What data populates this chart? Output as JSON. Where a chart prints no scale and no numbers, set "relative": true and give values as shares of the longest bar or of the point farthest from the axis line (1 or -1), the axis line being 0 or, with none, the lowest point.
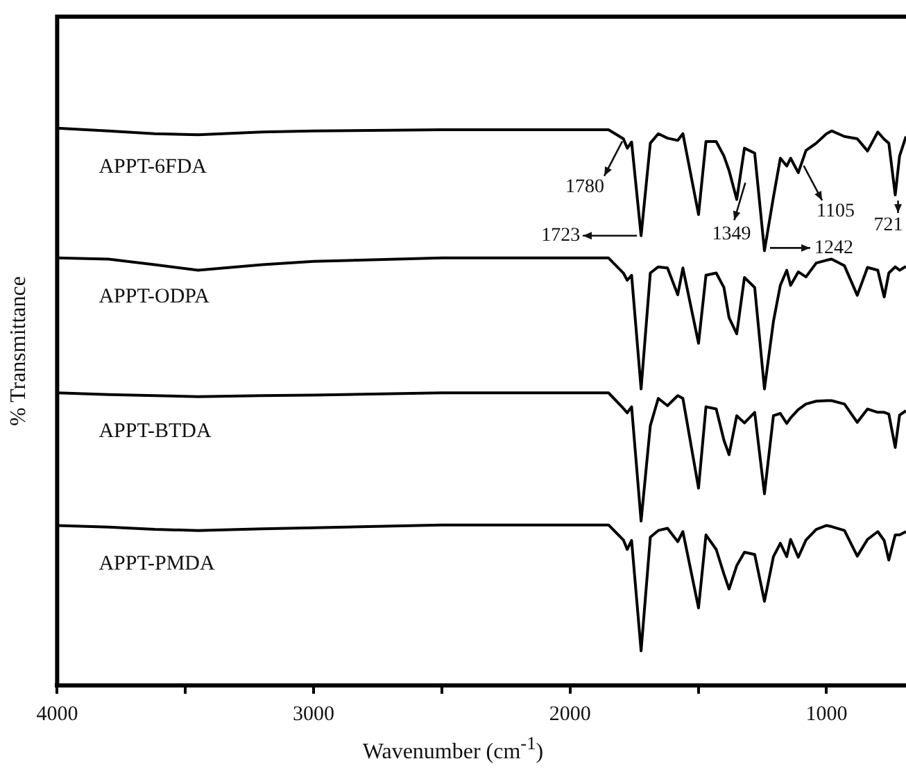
{
  "chart_data": {
    "type": "line",
    "relative": true,
    "xlabel": "Wavenumber (cm$^{-1}$)",
    "ylabel": "% Transmittance",
    "xlim": [
      4000,
      690
    ],
    "xticks": [
      4000,
      {
        "value": 3500,
        "label": null
      },
      3000,
      {
        "value": 2500,
        "label": null
      },
      2000,
      {
        "value": 1500,
        "label": null
      },
      1000
    ],
    "grid": false,
    "legend": false,
    "marker": "none",
    "line_style": "solid",
    "x": [
      4000,
      3800,
      3620,
      3450,
      3200,
      3000,
      2500,
      1850,
      1792,
      1777,
      1760,
      1723,
      1687,
      1656,
      1620,
      1580,
      1560,
      1499,
      1470,
      1430,
      1400,
      1380,
      1350,
      1320,
      1280,
      1242,
      1207,
      1180,
      1155,
      1140,
      1110,
      1080,
      1040,
      1000,
      980,
      930,
      880,
      840,
      800,
      775,
      757,
      732,
      715,
      690
    ],
    "series": [
      {
        "name": "APPT-6FDA",
        "color": "#000000",
        "values": [
          1.0,
          0.995,
          0.99,
          0.988,
          0.993,
          0.995,
          0.997,
          0.997,
          0.981,
          0.964,
          0.975,
          0.807,
          0.973,
          0.99,
          0.982,
          0.978,
          0.99,
          0.845,
          0.976,
          0.976,
          0.95,
          0.924,
          0.872,
          0.964,
          0.955,
          0.78,
          0.876,
          0.946,
          0.932,
          0.946,
          0.92,
          0.96,
          0.973,
          0.99,
          0.995,
          0.985,
          0.981,
          0.959,
          0.993,
          0.98,
          0.973,
          0.88,
          0.95,
          0.985
        ]
      },
      {
        "name": "APPT-ODPA",
        "color": "#000000",
        "values": [
          0.767,
          0.765,
          0.755,
          0.745,
          0.755,
          0.761,
          0.767,
          0.767,
          0.74,
          0.727,
          0.736,
          0.532,
          0.74,
          0.751,
          0.749,
          0.701,
          0.749,
          0.614,
          0.736,
          0.74,
          0.714,
          0.66,
          0.631,
          0.732,
          0.714,
          0.532,
          0.653,
          0.718,
          0.745,
          0.718,
          0.742,
          0.733,
          0.758,
          0.763,
          0.765,
          0.753,
          0.7,
          0.75,
          0.745,
          0.697,
          0.74,
          0.751,
          0.745,
          0.752
        ]
      },
      {
        "name": "APPT-BTDA",
        "color": "#000000",
        "values": [
          0.525,
          0.522,
          0.52,
          0.518,
          0.52,
          0.521,
          0.525,
          0.525,
          0.497,
          0.489,
          0.5,
          0.295,
          0.466,
          0.515,
          0.502,
          0.52,
          0.515,
          0.354,
          0.5,
          0.496,
          0.44,
          0.414,
          0.484,
          0.471,
          0.49,
          0.344,
          0.484,
          0.488,
          0.47,
          0.48,
          0.495,
          0.505,
          0.51,
          0.511,
          0.511,
          0.505,
          0.472,
          0.496,
          0.49,
          0.49,
          0.487,
          0.427,
          0.485,
          0.493
        ]
      },
      {
        "name": "APPT-PMDA",
        "color": "#000000",
        "values": [
          0.287,
          0.284,
          0.28,
          0.278,
          0.281,
          0.283,
          0.288,
          0.288,
          0.261,
          0.244,
          0.26,
          0.062,
          0.266,
          0.278,
          0.282,
          0.258,
          0.276,
          0.139,
          0.27,
          0.244,
          0.2,
          0.173,
          0.215,
          0.239,
          0.235,
          0.151,
          0.231,
          0.255,
          0.231,
          0.262,
          0.23,
          0.261,
          0.28,
          0.287,
          0.285,
          0.278,
          0.232,
          0.262,
          0.276,
          0.26,
          0.225,
          0.27,
          0.27,
          0.276
        ]
      }
    ],
    "annotations": [
      {
        "text": "1780",
        "x": 1780,
        "y": 0.964
      },
      {
        "text": "1723",
        "x": 1723,
        "y": 0.807
      },
      {
        "text": "1349",
        "x": 1349,
        "y": 0.872
      },
      {
        "text": "1242",
        "x": 1242,
        "y": 0.78
      },
      {
        "text": "1105",
        "x": 1105,
        "y": 0.92
      },
      {
        "text": "721",
        "x": 721,
        "y": 0.88
      }
    ]
  }
}
